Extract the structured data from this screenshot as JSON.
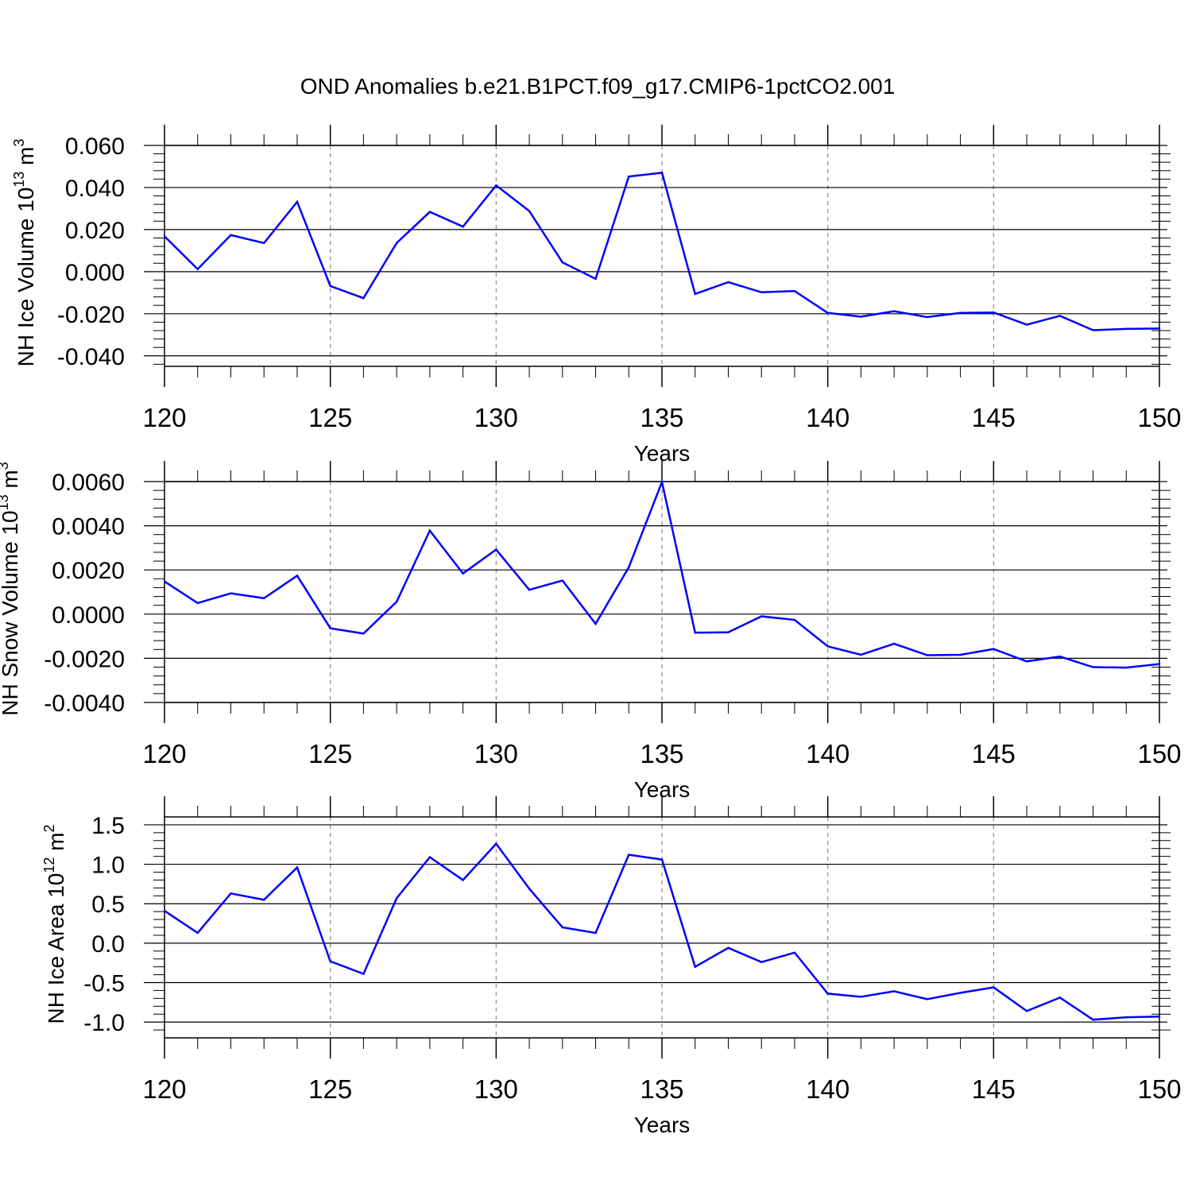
{
  "title": "OND Anomalies b.e21.B1PCT.f09_g17.CMIP6-1pctCO2.001",
  "colors": {
    "series": "#0000ff",
    "axis": "#000000",
    "grid": "#888888"
  },
  "chart_data": [
    {
      "type": "line",
      "ylabel_main": "NH Ice Volume 10",
      "ylabel_exp": "13",
      "ylabel_unit": " m",
      "ylabel_unit_exp": "3",
      "xlabel": "Years",
      "xlim": [
        120,
        150
      ],
      "ylim": [
        -0.045,
        0.06
      ],
      "yticks": [
        -0.04,
        -0.02,
        0.0,
        0.02,
        0.04,
        0.06
      ],
      "ytick_labels": [
        "-0.040",
        "-0.020",
        "0.000",
        "0.020",
        "0.040",
        "0.060"
      ],
      "yminor_step": 0.004,
      "xticks": [
        120,
        125,
        130,
        135,
        140,
        145,
        150
      ],
      "xtick_labels": [
        "120",
        "125",
        "130",
        "135",
        "140",
        "145",
        "150"
      ],
      "grid_x": [
        125,
        130,
        135,
        140,
        145
      ],
      "x": [
        120,
        121,
        122,
        123,
        124,
        125,
        126,
        127,
        128,
        129,
        130,
        131,
        132,
        133,
        134,
        135,
        136,
        137,
        138,
        139,
        140,
        141,
        142,
        143,
        144,
        145,
        146,
        147,
        148,
        149,
        150
      ],
      "y": [
        0.0168,
        0.0012,
        0.0174,
        0.0136,
        0.0332,
        -0.0068,
        -0.0126,
        0.0136,
        0.0284,
        0.0214,
        0.041,
        0.0288,
        0.0044,
        -0.0034,
        0.0452,
        0.047,
        -0.0106,
        -0.005,
        -0.0098,
        -0.0092,
        -0.0196,
        -0.0214,
        -0.0188,
        -0.0216,
        -0.0196,
        -0.0194,
        -0.0252,
        -0.021,
        -0.0278,
        -0.0272,
        -0.027
      ]
    },
    {
      "type": "line",
      "ylabel_main": "NH Snow Volume 10",
      "ylabel_exp": "13",
      "ylabel_unit": " m",
      "ylabel_unit_exp": "3",
      "xlabel": "Years",
      "xlim": [
        120,
        150
      ],
      "ylim": [
        -0.004,
        0.006
      ],
      "yticks": [
        -0.004,
        -0.002,
        0.0,
        0.002,
        0.004,
        0.006
      ],
      "ytick_labels": [
        "-0.0040",
        "-0.0020",
        "0.0000",
        "0.0020",
        "0.0040",
        "0.0060"
      ],
      "yminor_step": 0.0004,
      "xticks": [
        120,
        125,
        130,
        135,
        140,
        145,
        150
      ],
      "xtick_labels": [
        "120",
        "125",
        "130",
        "135",
        "140",
        "145",
        "150"
      ],
      "grid_x": [
        125,
        130,
        135,
        140,
        145
      ],
      "x": [
        120,
        121,
        122,
        123,
        124,
        125,
        126,
        127,
        128,
        129,
        130,
        131,
        132,
        133,
        134,
        135,
        136,
        137,
        138,
        139,
        140,
        141,
        142,
        143,
        144,
        145,
        146,
        147,
        148,
        149,
        150
      ],
      "y": [
        0.00148,
        0.0005,
        0.00094,
        0.00072,
        0.00174,
        -0.00064,
        -0.00088,
        0.00056,
        0.00378,
        0.00184,
        0.00292,
        0.0011,
        0.00152,
        -0.00044,
        0.00212,
        0.00598,
        -0.00084,
        -0.00082,
        -0.0001,
        -0.00026,
        -0.00146,
        -0.00184,
        -0.00134,
        -0.00186,
        -0.00184,
        -0.00158,
        -0.00214,
        -0.00192,
        -0.0024,
        -0.00242,
        -0.00226
      ]
    },
    {
      "type": "line",
      "ylabel_main": "NH Ice Area 10",
      "ylabel_exp": "12",
      "ylabel_unit": " m",
      "ylabel_unit_exp": "2",
      "xlabel": "Years",
      "xlim": [
        120,
        150
      ],
      "ylim": [
        -1.2,
        1.6
      ],
      "yticks": [
        -1.0,
        -0.5,
        0.0,
        0.5,
        1.0,
        1.5
      ],
      "ytick_labels": [
        "-1.0",
        "-0.5",
        "0.0",
        "0.5",
        "1.0",
        "1.5"
      ],
      "yminor_step": 0.1,
      "xticks": [
        120,
        125,
        130,
        135,
        140,
        145,
        150
      ],
      "xtick_labels": [
        "120",
        "125",
        "130",
        "135",
        "140",
        "145",
        "150"
      ],
      "grid_x": [
        125,
        130,
        135,
        140,
        145
      ],
      "x": [
        120,
        121,
        122,
        123,
        124,
        125,
        126,
        127,
        128,
        129,
        130,
        131,
        132,
        133,
        134,
        135,
        136,
        137,
        138,
        139,
        140,
        141,
        142,
        143,
        144,
        145,
        146,
        147,
        148,
        149,
        150
      ],
      "y": [
        0.41,
        0.13,
        0.63,
        0.55,
        0.96,
        -0.23,
        -0.39,
        0.57,
        1.09,
        0.8,
        1.26,
        0.69,
        0.2,
        0.13,
        1.12,
        1.06,
        -0.3,
        -0.06,
        -0.24,
        -0.12,
        -0.64,
        -0.68,
        -0.61,
        -0.71,
        -0.63,
        -0.56,
        -0.86,
        -0.69,
        -0.97,
        -0.94,
        -0.93
      ]
    }
  ]
}
